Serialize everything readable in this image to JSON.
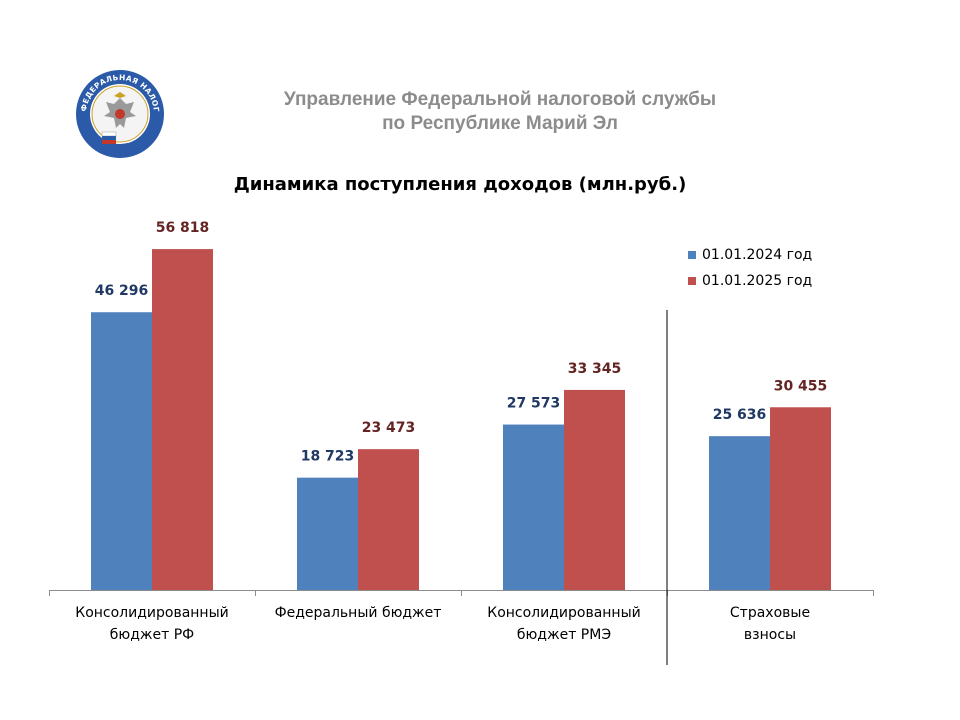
{
  "header": {
    "line1": "Управление Федеральной налоговой службы",
    "line2": "по Республике Марий Эл"
  },
  "logo": {
    "text": "ФЕДЕРАЛЬНАЯ НАЛОГОВАЯ СЛУЖБА",
    "icon": "double-headed-eagle-emblem"
  },
  "colors": {
    "series_2024": "#4f81bd",
    "series_2025": "#c0504d",
    "label_2024": "#1f3864",
    "label_2025": "#632523",
    "header": "#8c8c8c"
  },
  "chart_data": {
    "type": "bar",
    "title": "Динамика поступления доходов (млн.руб.)",
    "xlabel": "",
    "ylabel": "",
    "ylim": [
      0,
      60000
    ],
    "grid": false,
    "legend_position": "top-right",
    "categories": [
      [
        "Консолидированный",
        "бюджет РФ"
      ],
      [
        "Федеральный бюджет"
      ],
      [
        "Консолидированный",
        "бюджет РМЭ"
      ],
      [
        "Страховые",
        "взносы"
      ]
    ],
    "series": [
      {
        "name": "01.01.2024 год",
        "values": [
          46296,
          18723,
          27573,
          25636
        ],
        "labels": [
          "46 296",
          "18 723",
          "27 573",
          "25 636"
        ]
      },
      {
        "name": "01.01.2025 год",
        "values": [
          56818,
          23473,
          33345,
          30455
        ],
        "labels": [
          "56 818",
          "23 473",
          "33 345",
          "30 455"
        ]
      }
    ]
  }
}
